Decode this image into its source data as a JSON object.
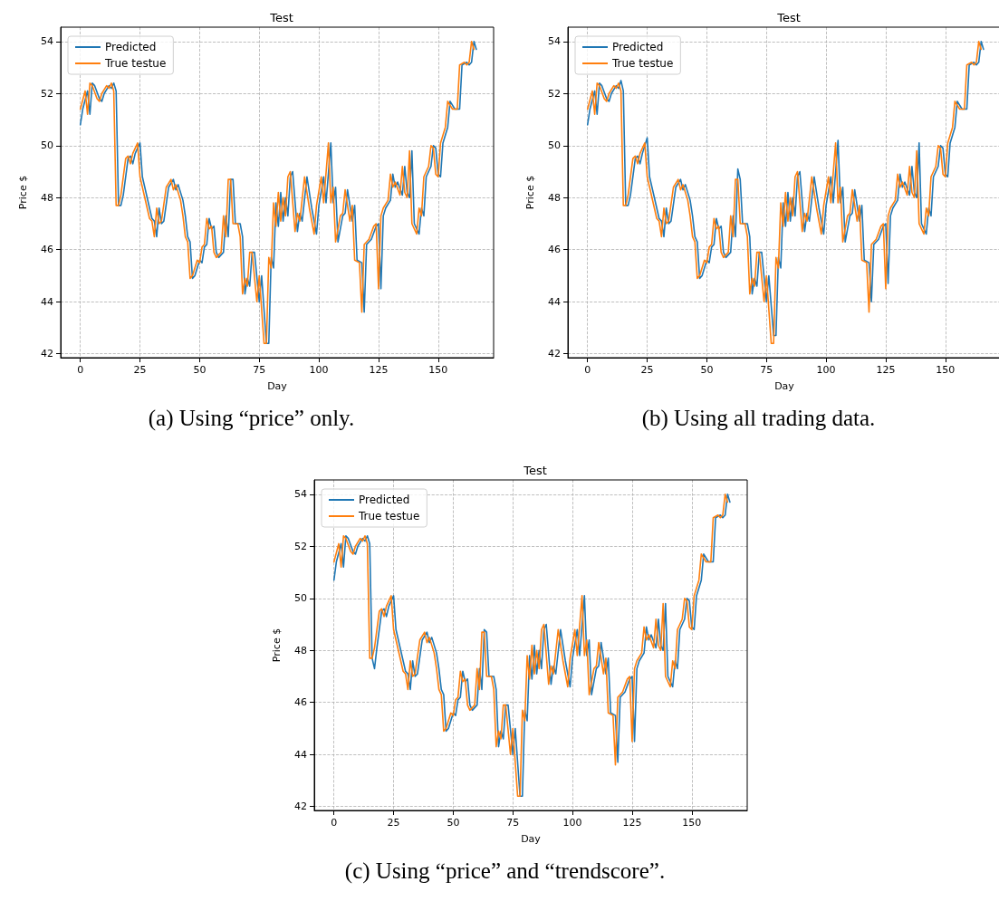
{
  "chart_data": [
    {
      "type": "line",
      "title": "Test",
      "xlabel": "Day",
      "ylabel": "Price $",
      "annotations": [
        "(a) Using “price” only."
      ],
      "xlim": [
        -8.25,
        173.25
      ],
      "ylim": [
        41.85,
        54.55
      ],
      "xticks": [
        0,
        25,
        50,
        75,
        100,
        125,
        150
      ],
      "yticks": [
        42,
        44,
        46,
        48,
        50,
        52,
        54
      ],
      "grid": true,
      "legend": "top left",
      "marker": "none",
      "line_style": "solid",
      "series": [
        {
          "name": "Predicted",
          "color": "#1f77b4",
          "x": [
            0,
            1,
            3,
            4,
            5,
            6,
            8,
            9,
            10,
            12,
            13,
            14,
            15,
            16,
            17,
            18,
            20,
            21,
            22,
            23,
            25,
            26,
            27,
            29,
            30,
            31,
            32,
            33,
            34,
            35,
            37,
            39,
            40,
            41,
            43,
            44,
            45,
            46,
            47,
            48,
            50,
            51,
            52,
            53,
            54,
            55,
            56,
            57,
            58,
            60,
            61,
            62,
            63,
            64,
            65,
            67,
            68,
            69,
            70,
            71,
            72,
            73,
            75,
            76,
            78,
            79,
            80,
            81,
            82,
            83,
            84,
            85,
            86,
            87,
            88,
            89,
            91,
            92,
            93,
            95,
            97,
            99,
            100,
            102,
            103,
            105,
            106,
            107,
            108,
            110,
            111,
            112,
            114,
            115,
            116,
            118,
            119,
            120,
            122,
            124,
            125,
            126,
            127,
            128,
            130,
            131,
            132,
            133,
            135,
            136,
            137,
            138,
            139,
            140,
            142,
            143,
            144,
            145,
            147,
            148,
            149,
            150,
            151,
            152,
            154,
            155,
            157,
            159,
            160,
            162,
            163,
            164,
            165,
            166
          ],
          "values": [
            50.8,
            51.4,
            52.1,
            51.2,
            52.4,
            52.3,
            51.8,
            51.7,
            52.0,
            52.3,
            52.2,
            52.4,
            52.1,
            47.7,
            47.7,
            48.1,
            49.5,
            49.6,
            49.3,
            49.7,
            50.1,
            48.8,
            48.4,
            47.6,
            47.2,
            47.1,
            46.5,
            47.6,
            47.0,
            47.1,
            48.4,
            48.7,
            48.3,
            48.5,
            47.9,
            47.3,
            46.5,
            46.3,
            44.9,
            45.0,
            45.6,
            45.5,
            46.1,
            46.2,
            47.2,
            46.8,
            46.9,
            45.9,
            45.7,
            45.9,
            47.3,
            46.5,
            48.7,
            48.7,
            47.0,
            47.0,
            46.5,
            44.3,
            44.9,
            44.6,
            45.9,
            45.9,
            44.0,
            45.0,
            42.4,
            42.4,
            45.7,
            45.3,
            47.8,
            46.9,
            48.2,
            47.1,
            48.0,
            47.3,
            48.8,
            49.0,
            46.7,
            47.4,
            47.1,
            48.8,
            47.6,
            46.6,
            47.7,
            48.8,
            47.8,
            50.1,
            47.8,
            48.4,
            46.3,
            47.3,
            47.4,
            48.3,
            47.1,
            47.7,
            45.6,
            45.5,
            43.6,
            46.2,
            46.4,
            46.9,
            47.0,
            44.5,
            47.3,
            47.6,
            47.9,
            48.9,
            48.4,
            48.6,
            48.1,
            49.2,
            48.2,
            48.0,
            49.8,
            47.0,
            46.6,
            47.6,
            47.3,
            48.8,
            49.2,
            50.0,
            49.9,
            48.9,
            48.8,
            50.1,
            50.7,
            51.7,
            51.4,
            51.4,
            53.1,
            53.2,
            53.1,
            53.2,
            54.0,
            53.7
          ]
        },
        {
          "name": "True testue",
          "color": "#ff7f0e",
          "x": [
            0,
            2,
            3,
            4,
            5,
            7,
            8,
            9,
            11,
            12,
            13,
            14,
            15,
            16,
            17,
            19,
            20,
            21,
            22,
            24,
            25,
            26,
            28,
            29,
            30,
            31,
            32,
            33,
            34,
            36,
            38,
            39,
            40,
            42,
            43,
            44,
            45,
            46,
            47,
            49,
            50,
            51,
            52,
            53,
            54,
            55,
            56,
            57,
            59,
            60,
            61,
            62,
            63,
            64,
            66,
            67,
            68,
            69,
            70,
            71,
            72,
            74,
            75,
            77,
            78,
            79,
            80,
            81,
            82,
            83,
            84,
            85,
            86,
            87,
            88,
            90,
            91,
            92,
            94,
            96,
            98,
            99,
            101,
            102,
            104,
            105,
            106,
            107,
            109,
            110,
            111,
            113,
            114,
            115,
            117,
            118,
            119,
            121,
            123,
            124,
            125,
            126,
            127,
            129,
            130,
            131,
            132,
            134,
            135,
            136,
            137,
            138,
            139,
            141,
            142,
            143,
            144,
            146,
            147,
            148,
            149,
            150,
            151,
            153,
            154,
            156,
            158,
            159,
            161,
            162,
            163,
            164,
            165
          ],
          "values": [
            51.4,
            52.1,
            51.2,
            52.4,
            52.3,
            51.8,
            51.7,
            52.0,
            52.3,
            52.2,
            52.4,
            52.1,
            47.7,
            47.7,
            48.1,
            49.5,
            49.6,
            49.3,
            49.7,
            50.1,
            48.8,
            48.4,
            47.6,
            47.2,
            47.1,
            46.5,
            47.6,
            47.0,
            47.1,
            48.4,
            48.7,
            48.3,
            48.5,
            47.9,
            47.3,
            46.5,
            46.3,
            44.9,
            45.0,
            45.6,
            45.5,
            46.1,
            46.2,
            47.2,
            46.8,
            46.9,
            45.9,
            45.7,
            45.9,
            47.3,
            46.5,
            48.7,
            48.7,
            47.0,
            47.0,
            46.5,
            44.3,
            44.9,
            44.6,
            45.9,
            45.9,
            44.0,
            45.0,
            42.4,
            42.4,
            45.7,
            45.3,
            47.8,
            46.9,
            48.2,
            47.1,
            48.0,
            47.3,
            48.8,
            49.0,
            46.7,
            47.4,
            47.1,
            48.8,
            47.6,
            46.6,
            47.7,
            48.8,
            47.8,
            50.1,
            47.8,
            48.4,
            46.3,
            47.3,
            47.4,
            48.3,
            47.1,
            47.7,
            45.6,
            45.5,
            43.6,
            46.2,
            46.4,
            46.9,
            47.0,
            44.5,
            47.3,
            47.6,
            47.9,
            48.9,
            48.4,
            48.6,
            48.1,
            49.2,
            48.2,
            48.0,
            49.8,
            47.0,
            46.6,
            47.6,
            47.3,
            48.8,
            49.2,
            50.0,
            49.9,
            48.9,
            48.8,
            50.1,
            50.7,
            51.7,
            51.4,
            51.4,
            53.1,
            53.2,
            53.1,
            53.2,
            54.0,
            53.7
          ]
        }
      ]
    },
    {
      "type": "line",
      "title": "Test",
      "xlabel": "Day",
      "ylabel": "Price $",
      "annotations": [
        "(b) Using all trading data."
      ],
      "xlim": [
        -8.25,
        173.25
      ],
      "ylim": [
        41.85,
        54.55
      ],
      "xticks": [
        0,
        25,
        50,
        75,
        100,
        125,
        150
      ],
      "yticks": [
        42,
        44,
        46,
        48,
        50,
        52,
        54
      ],
      "grid": true,
      "legend": "top left",
      "marker": "none",
      "line_style": "solid",
      "series": [
        {
          "name": "Predicted",
          "color": "#1f77b4",
          "x": [
            0,
            1,
            3,
            4,
            5,
            6,
            8,
            9,
            10,
            12,
            13,
            14,
            15,
            16,
            17,
            18,
            20,
            21,
            22,
            23,
            25,
            26,
            27,
            29,
            30,
            31,
            32,
            33,
            34,
            35,
            37,
            39,
            40,
            41,
            43,
            44,
            45,
            46,
            47,
            48,
            50,
            51,
            52,
            53,
            54,
            55,
            56,
            57,
            58,
            60,
            61,
            62,
            63,
            64,
            65,
            67,
            68,
            69,
            70,
            71,
            72,
            73,
            75,
            76,
            78,
            79,
            80,
            81,
            82,
            83,
            84,
            85,
            86,
            87,
            88,
            89,
            91,
            92,
            93,
            95,
            97,
            99,
            100,
            102,
            103,
            105,
            106,
            107,
            108,
            110,
            111,
            112,
            114,
            115,
            116,
            118,
            119,
            120,
            122,
            124,
            125,
            126,
            127,
            128,
            130,
            131,
            132,
            133,
            135,
            136,
            137,
            138,
            139,
            140,
            142,
            143,
            144,
            145,
            147,
            148,
            149,
            150,
            151,
            152,
            154,
            155,
            157,
            159,
            160,
            162,
            163,
            164,
            165,
            166
          ],
          "values": [
            50.8,
            51.4,
            52.1,
            51.2,
            52.4,
            52.3,
            51.8,
            51.7,
            52.0,
            52.3,
            52.2,
            52.5,
            52.1,
            47.7,
            47.7,
            48.1,
            49.5,
            49.6,
            49.3,
            49.7,
            50.3,
            48.8,
            48.4,
            47.6,
            47.2,
            47.1,
            46.5,
            47.6,
            47.0,
            47.1,
            48.4,
            48.7,
            48.3,
            48.5,
            47.9,
            47.3,
            46.5,
            46.3,
            44.9,
            45.0,
            45.6,
            45.5,
            46.1,
            46.2,
            47.2,
            46.8,
            46.9,
            45.9,
            45.7,
            45.9,
            47.3,
            46.5,
            49.1,
            48.7,
            47.0,
            47.0,
            46.5,
            44.3,
            44.9,
            44.6,
            45.9,
            45.9,
            44.0,
            45.0,
            42.7,
            42.7,
            45.7,
            45.3,
            47.8,
            46.9,
            48.2,
            47.1,
            48.0,
            47.3,
            48.8,
            49.0,
            46.7,
            47.4,
            47.1,
            48.8,
            47.6,
            46.6,
            47.7,
            48.8,
            47.8,
            50.2,
            47.8,
            48.4,
            46.3,
            47.3,
            47.4,
            48.3,
            47.1,
            47.7,
            45.6,
            45.5,
            44.0,
            46.2,
            46.4,
            46.9,
            47.0,
            44.7,
            47.3,
            47.6,
            47.9,
            48.9,
            48.4,
            48.6,
            48.1,
            49.2,
            48.2,
            48.0,
            50.1,
            47.0,
            46.6,
            47.6,
            47.3,
            48.8,
            49.2,
            50.0,
            49.9,
            48.9,
            48.8,
            50.1,
            50.7,
            51.7,
            51.4,
            51.4,
            53.1,
            53.2,
            53.1,
            53.2,
            54.0,
            53.7
          ]
        },
        {
          "name": "True testue",
          "color": "#ff7f0e",
          "x": [
            0,
            2,
            3,
            4,
            5,
            7,
            8,
            9,
            11,
            12,
            13,
            14,
            15,
            16,
            17,
            19,
            20,
            21,
            22,
            24,
            25,
            26,
            28,
            29,
            30,
            31,
            32,
            33,
            34,
            36,
            38,
            39,
            40,
            42,
            43,
            44,
            45,
            46,
            47,
            49,
            50,
            51,
            52,
            53,
            54,
            55,
            56,
            57,
            59,
            60,
            61,
            62,
            63,
            64,
            66,
            67,
            68,
            69,
            70,
            71,
            72,
            74,
            75,
            77,
            78,
            79,
            80,
            81,
            82,
            83,
            84,
            85,
            86,
            87,
            88,
            90,
            91,
            92,
            94,
            96,
            98,
            99,
            101,
            102,
            104,
            105,
            106,
            107,
            109,
            110,
            111,
            113,
            114,
            115,
            117,
            118,
            119,
            121,
            123,
            124,
            125,
            126,
            127,
            129,
            130,
            131,
            132,
            134,
            135,
            136,
            137,
            138,
            139,
            141,
            142,
            143,
            144,
            146,
            147,
            148,
            149,
            150,
            151,
            153,
            154,
            156,
            158,
            159,
            161,
            162,
            163,
            164,
            165
          ],
          "values": [
            51.4,
            52.1,
            51.2,
            52.4,
            52.3,
            51.8,
            51.7,
            52.0,
            52.3,
            52.2,
            52.4,
            52.1,
            47.7,
            47.7,
            48.1,
            49.5,
            49.6,
            49.3,
            49.7,
            50.1,
            48.8,
            48.4,
            47.6,
            47.2,
            47.1,
            46.5,
            47.6,
            47.0,
            47.1,
            48.4,
            48.7,
            48.3,
            48.5,
            47.9,
            47.3,
            46.5,
            46.3,
            44.9,
            45.0,
            45.6,
            45.5,
            46.1,
            46.2,
            47.2,
            46.8,
            46.9,
            45.9,
            45.7,
            45.9,
            47.3,
            46.5,
            48.7,
            48.7,
            47.0,
            47.0,
            46.5,
            44.3,
            44.9,
            44.6,
            45.9,
            45.9,
            44.0,
            45.0,
            42.4,
            42.4,
            45.7,
            45.3,
            47.8,
            46.9,
            48.2,
            47.1,
            48.0,
            47.3,
            48.8,
            49.0,
            46.7,
            47.4,
            47.1,
            48.8,
            47.6,
            46.6,
            47.7,
            48.8,
            47.8,
            50.1,
            47.8,
            48.4,
            46.3,
            47.3,
            47.4,
            48.3,
            47.1,
            47.7,
            45.6,
            45.5,
            43.6,
            46.2,
            46.4,
            46.9,
            47.0,
            44.5,
            47.3,
            47.6,
            47.9,
            48.9,
            48.4,
            48.6,
            48.1,
            49.2,
            48.2,
            48.0,
            49.8,
            47.0,
            46.6,
            47.6,
            47.3,
            48.8,
            49.2,
            50.0,
            49.9,
            48.9,
            48.8,
            50.1,
            50.7,
            51.7,
            51.4,
            51.4,
            53.1,
            53.2,
            53.1,
            53.2,
            54.0,
            53.7
          ]
        }
      ]
    },
    {
      "type": "line",
      "title": "Test",
      "xlabel": "Day",
      "ylabel": "Price $",
      "annotations": [
        "(c) Using “price” and “trendscore”."
      ],
      "xlim": [
        -8.25,
        173.25
      ],
      "ylim": [
        41.85,
        54.55
      ],
      "xticks": [
        0,
        25,
        50,
        75,
        100,
        125,
        150
      ],
      "yticks": [
        42,
        44,
        46,
        48,
        50,
        52,
        54
      ],
      "grid": true,
      "legend": "top left",
      "marker": "none",
      "line_style": "solid",
      "series": [
        {
          "name": "Predicted",
          "color": "#1f77b4",
          "x": [
            0,
            1,
            3,
            4,
            5,
            6,
            8,
            9,
            10,
            12,
            13,
            14,
            15,
            16,
            17,
            18,
            20,
            21,
            22,
            23,
            25,
            26,
            27,
            29,
            30,
            31,
            32,
            33,
            34,
            35,
            37,
            39,
            40,
            41,
            43,
            44,
            45,
            46,
            47,
            48,
            50,
            51,
            52,
            53,
            54,
            55,
            56,
            57,
            58,
            60,
            61,
            62,
            63,
            64,
            65,
            67,
            68,
            69,
            70,
            71,
            72,
            73,
            75,
            76,
            78,
            79,
            80,
            81,
            82,
            83,
            84,
            85,
            86,
            87,
            88,
            89,
            91,
            92,
            93,
            95,
            97,
            99,
            100,
            102,
            103,
            105,
            106,
            107,
            108,
            110,
            111,
            112,
            114,
            115,
            116,
            118,
            119,
            120,
            122,
            124,
            125,
            126,
            127,
            128,
            130,
            131,
            132,
            133,
            135,
            136,
            137,
            138,
            139,
            140,
            142,
            143,
            144,
            145,
            147,
            148,
            149,
            150,
            151,
            152,
            154,
            155,
            157,
            159,
            160,
            162,
            163,
            164,
            165,
            166
          ],
          "values": [
            50.7,
            51.4,
            52.1,
            51.2,
            52.4,
            52.3,
            51.8,
            51.7,
            52.0,
            52.3,
            52.2,
            52.4,
            52.1,
            47.7,
            47.3,
            48.1,
            49.5,
            49.6,
            49.3,
            49.7,
            50.1,
            48.8,
            48.4,
            47.6,
            47.2,
            47.1,
            46.5,
            47.6,
            47.0,
            47.1,
            48.4,
            48.7,
            48.3,
            48.5,
            47.9,
            47.3,
            46.5,
            46.3,
            44.9,
            45.0,
            45.6,
            45.5,
            46.1,
            46.2,
            47.2,
            46.8,
            46.9,
            45.9,
            45.7,
            45.9,
            47.3,
            46.5,
            48.8,
            48.7,
            47.0,
            47.0,
            46.5,
            44.3,
            44.9,
            44.6,
            45.9,
            45.9,
            44.0,
            45.0,
            42.4,
            42.4,
            45.7,
            45.3,
            47.8,
            46.9,
            48.2,
            47.1,
            48.0,
            47.3,
            48.8,
            49.0,
            46.7,
            47.4,
            47.1,
            48.8,
            47.6,
            46.6,
            47.7,
            48.8,
            47.8,
            50.1,
            47.8,
            48.4,
            46.3,
            47.3,
            47.4,
            48.3,
            47.1,
            47.7,
            45.6,
            45.5,
            43.7,
            46.2,
            46.4,
            46.9,
            47.0,
            44.5,
            47.3,
            47.6,
            47.9,
            48.9,
            48.4,
            48.6,
            48.1,
            49.2,
            48.2,
            48.0,
            49.8,
            47.0,
            46.6,
            47.6,
            47.3,
            48.8,
            49.2,
            50.0,
            49.9,
            48.9,
            48.8,
            50.1,
            50.7,
            51.7,
            51.4,
            51.4,
            53.1,
            53.2,
            53.1,
            53.2,
            54.0,
            53.7
          ]
        },
        {
          "name": "True testue",
          "color": "#ff7f0e",
          "x": [
            0,
            2,
            3,
            4,
            5,
            7,
            8,
            9,
            11,
            12,
            13,
            14,
            15,
            16,
            17,
            19,
            20,
            21,
            22,
            24,
            25,
            26,
            28,
            29,
            30,
            31,
            32,
            33,
            34,
            36,
            38,
            39,
            40,
            42,
            43,
            44,
            45,
            46,
            47,
            49,
            50,
            51,
            52,
            53,
            54,
            55,
            56,
            57,
            59,
            60,
            61,
            62,
            63,
            64,
            66,
            67,
            68,
            69,
            70,
            71,
            72,
            74,
            75,
            77,
            78,
            79,
            80,
            81,
            82,
            83,
            84,
            85,
            86,
            87,
            88,
            90,
            91,
            92,
            94,
            96,
            98,
            99,
            101,
            102,
            104,
            105,
            106,
            107,
            109,
            110,
            111,
            113,
            114,
            115,
            117,
            118,
            119,
            121,
            123,
            124,
            125,
            126,
            127,
            129,
            130,
            131,
            132,
            134,
            135,
            136,
            137,
            138,
            139,
            141,
            142,
            143,
            144,
            146,
            147,
            148,
            149,
            150,
            151,
            153,
            154,
            156,
            158,
            159,
            161,
            162,
            163,
            164,
            165
          ],
          "values": [
            51.4,
            52.1,
            51.2,
            52.4,
            52.3,
            51.8,
            51.7,
            52.0,
            52.3,
            52.2,
            52.4,
            52.1,
            47.7,
            47.7,
            48.1,
            49.5,
            49.6,
            49.3,
            49.7,
            50.1,
            48.8,
            48.4,
            47.6,
            47.2,
            47.1,
            46.5,
            47.6,
            47.0,
            47.1,
            48.4,
            48.7,
            48.3,
            48.5,
            47.9,
            47.3,
            46.5,
            46.3,
            44.9,
            45.0,
            45.6,
            45.5,
            46.1,
            46.2,
            47.2,
            46.8,
            46.9,
            45.9,
            45.7,
            45.9,
            47.3,
            46.5,
            48.7,
            48.7,
            47.0,
            47.0,
            46.5,
            44.3,
            44.9,
            44.6,
            45.9,
            45.9,
            44.0,
            45.0,
            42.4,
            42.4,
            45.7,
            45.3,
            47.8,
            46.9,
            48.2,
            47.1,
            48.0,
            47.3,
            48.8,
            49.0,
            46.7,
            47.4,
            47.1,
            48.8,
            47.6,
            46.6,
            47.7,
            48.8,
            47.8,
            50.1,
            47.8,
            48.4,
            46.3,
            47.3,
            47.4,
            48.3,
            47.1,
            47.7,
            45.6,
            45.5,
            43.6,
            46.2,
            46.4,
            46.9,
            47.0,
            44.5,
            47.3,
            47.6,
            47.9,
            48.9,
            48.4,
            48.6,
            48.1,
            49.2,
            48.2,
            48.0,
            49.8,
            47.0,
            46.6,
            47.6,
            47.3,
            48.8,
            49.2,
            50.0,
            49.9,
            48.9,
            48.8,
            50.1,
            50.7,
            51.7,
            51.4,
            51.4,
            53.1,
            53.2,
            53.1,
            53.2,
            54.0,
            53.7
          ]
        }
      ]
    }
  ]
}
